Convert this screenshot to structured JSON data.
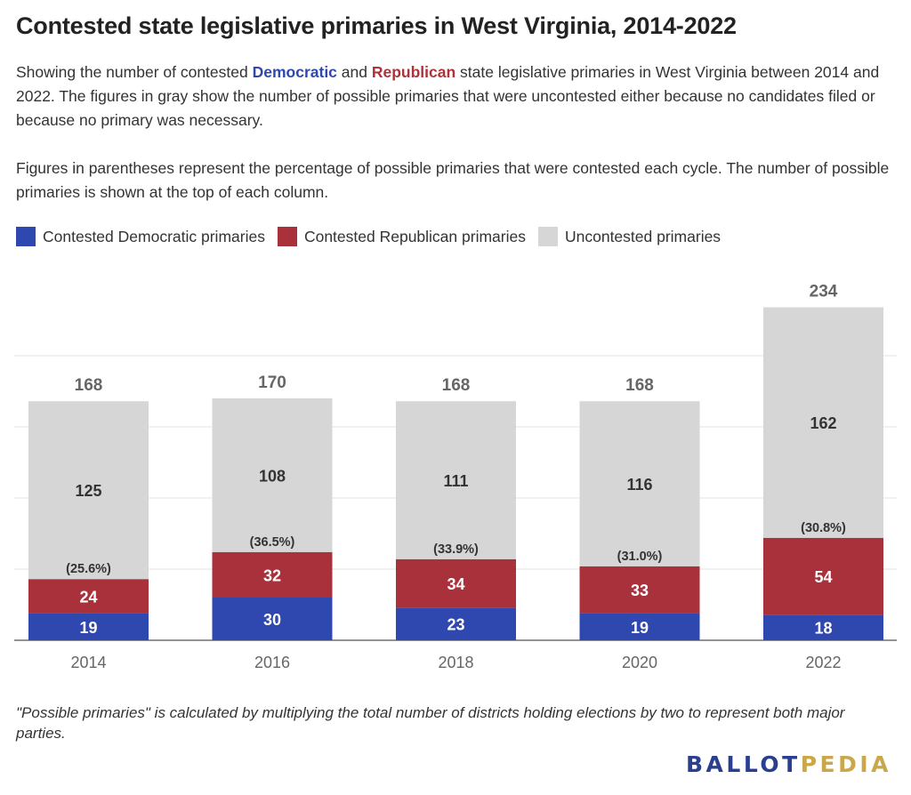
{
  "title": "Contested state legislative primaries in West Virginia, 2014-2022",
  "description": {
    "p1_before": "Showing the number of contested ",
    "p1_dem": "Democratic",
    "p1_mid": " and ",
    "p1_rep": "Republican",
    "p1_after": " state legislative primaries in West Virginia between 2014 and 2022. The figures in gray show the number of possible primaries that were uncontested either because no candidates filed or because no primary was necessary.",
    "p2": "Figures in parentheses represent the percentage of possible primaries that were contested each cycle. The number of possible primaries is shown at the top of each column."
  },
  "legend": [
    {
      "label": "Contested Democratic primaries",
      "color": "#2f48b0"
    },
    {
      "label": "Contested Republican primaries",
      "color": "#a8313b"
    },
    {
      "label": "Uncontested primaries",
      "color": "#d6d6d6"
    }
  ],
  "footnote": "\"Possible primaries\" is calculated by multiplying the total number of districts holding elections by two to represent both major parties.",
  "logo": {
    "part1": "BALLOT",
    "part2": "PEDIA"
  },
  "chart_data": {
    "type": "bar",
    "stacked": true,
    "categories": [
      "2014",
      "2016",
      "2018",
      "2020",
      "2022"
    ],
    "series": [
      {
        "name": "Contested Democratic primaries",
        "color": "#2f48b0",
        "values": [
          19,
          30,
          23,
          19,
          18
        ]
      },
      {
        "name": "Contested Republican primaries",
        "color": "#a8313b",
        "values": [
          24,
          32,
          34,
          33,
          54
        ]
      },
      {
        "name": "Uncontested primaries",
        "color": "#d6d6d6",
        "values": [
          125,
          108,
          111,
          116,
          162
        ]
      }
    ],
    "totals": [
      "168",
      "170",
      "168",
      "168",
      "234"
    ],
    "percent_labels": [
      "(25.6%)",
      "(36.5%)",
      "(33.9%)",
      "(31.0%)",
      "(30.8%)"
    ],
    "ylim": [
      0,
      250
    ],
    "gridlines": [
      0,
      50,
      100,
      150,
      200
    ],
    "grid": true,
    "legend_position": "top-left"
  }
}
